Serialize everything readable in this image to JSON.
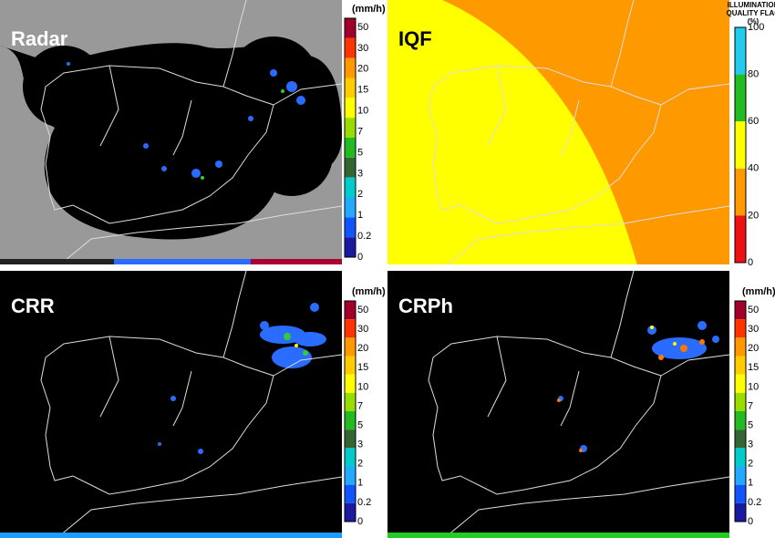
{
  "panels": [
    {
      "title": "Radar",
      "colorbar": {
        "unit": "(mm/h)",
        "labels": [
          "50",
          "30",
          "20",
          "15",
          "10",
          "7",
          "5",
          "3",
          "2",
          "1",
          "0.2",
          "0"
        ]
      }
    },
    {
      "title": "IQF",
      "colorbar": {
        "unit": [
          "ILLUMINATION",
          "QUALITY FLAG",
          "(%)"
        ],
        "labels": [
          "100",
          "80",
          "60",
          "40",
          "20",
          "0"
        ]
      }
    },
    {
      "title": "CRR",
      "colorbar": {
        "unit": "(mm/h)",
        "labels": [
          "50",
          "30",
          "20",
          "15",
          "10",
          "7",
          "5",
          "3",
          "2",
          "1",
          "0.2",
          "0"
        ]
      }
    },
    {
      "title": "CRPh",
      "colorbar": {
        "unit": "(mm/h)",
        "labels": [
          "50",
          "30",
          "20",
          "15",
          "10",
          "7",
          "5",
          "3",
          "2",
          "1",
          "0.2",
          "0"
        ]
      }
    }
  ]
}
